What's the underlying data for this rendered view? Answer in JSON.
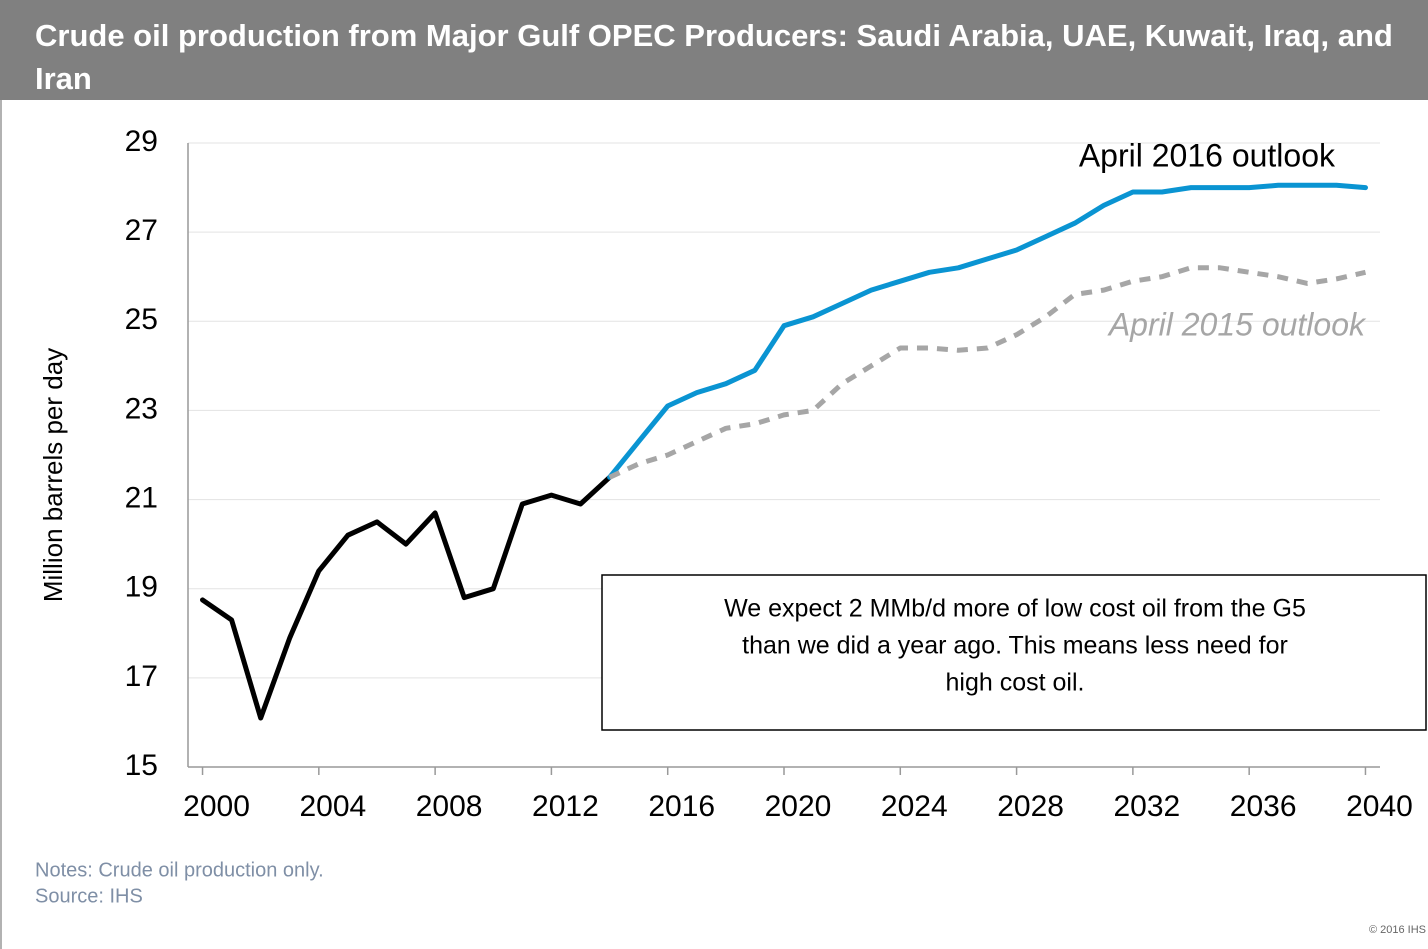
{
  "chart_data": {
    "type": "line",
    "title": "Crude oil production from Major Gulf OPEC Producers: Saudi Arabia, UAE, Kuwait, Iraq, and Iran",
    "y_label": "Million barrels per day",
    "x": [
      2000,
      2001,
      2002,
      2003,
      2004,
      2005,
      2006,
      2007,
      2008,
      2009,
      2010,
      2011,
      2012,
      2013,
      2014,
      2015,
      2016,
      2017,
      2018,
      2019,
      2020,
      2021,
      2022,
      2023,
      2024,
      2025,
      2026,
      2027,
      2028,
      2029,
      2030,
      2031,
      2032,
      2033,
      2034,
      2035,
      2036,
      2037,
      2038,
      2039,
      2040
    ],
    "series": [
      {
        "color": "#000000",
        "dash": false,
        "values": [
          18.75,
          18.3,
          16.1,
          17.9,
          19.4,
          20.2,
          20.5,
          20.0,
          20.7,
          18.8,
          19.0,
          20.9,
          21.1,
          20.9,
          21.5,
          null,
          null,
          null,
          null,
          null,
          null,
          null,
          null,
          null,
          null,
          null,
          null,
          null,
          null,
          null,
          null,
          null,
          null,
          null,
          null,
          null,
          null,
          null,
          null,
          null,
          null
        ]
      },
      {
        "name": "April 2016 outlook",
        "color": "#0a94d2",
        "dash": false,
        "values": [
          null,
          null,
          null,
          null,
          null,
          null,
          null,
          null,
          null,
          null,
          null,
          null,
          null,
          null,
          21.5,
          22.3,
          23.1,
          23.4,
          23.6,
          23.9,
          24.9,
          25.1,
          25.4,
          25.7,
          25.9,
          26.1,
          26.2,
          26.4,
          26.6,
          26.9,
          27.2,
          27.6,
          27.9,
          27.9,
          28.0,
          28.0,
          28.0,
          28.05,
          28.05,
          28.05,
          28.0
        ]
      },
      {
        "name": "April 2015 outlook",
        "color": "#a6a6a6",
        "dash": true,
        "values": [
          null,
          null,
          null,
          null,
          null,
          null,
          null,
          null,
          null,
          null,
          null,
          null,
          null,
          null,
          21.5,
          21.8,
          22.0,
          22.3,
          22.6,
          22.7,
          22.9,
          23.0,
          23.6,
          24.0,
          24.4,
          24.4,
          24.35,
          24.4,
          24.7,
          25.1,
          25.6,
          25.7,
          25.9,
          26.0,
          26.2,
          26.2,
          26.1,
          26.0,
          25.85,
          25.95,
          26.1
        ]
      }
    ],
    "xlim": [
      1999.5,
      2040.5
    ],
    "xticks": [
      2000,
      2004,
      2008,
      2012,
      2016,
      2020,
      2024,
      2028,
      2032,
      2036,
      2040
    ],
    "ylim": [
      15,
      29
    ],
    "yticks": [
      15,
      17,
      19,
      21,
      23,
      25,
      27,
      29
    ],
    "grid": true,
    "annotation": [
      "We expect 2 MMb/d more of low cost oil from the G5",
      "than we did a year ago. This means less need for",
      "high cost oil."
    ],
    "notes": "Notes: Crude oil production only.",
    "source": "Source: IHS",
    "copyright": "© 2016 IHS"
  }
}
